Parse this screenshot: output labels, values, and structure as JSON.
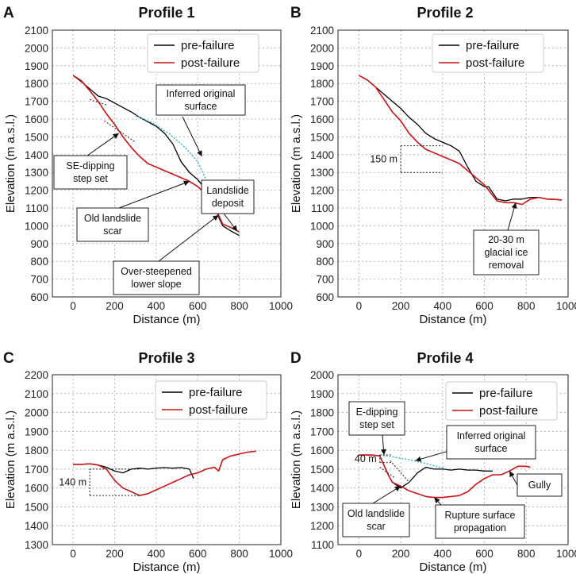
{
  "colors": {
    "pre": "#000000",
    "post": "#cc1414",
    "inferred": "#3fb8c8",
    "grid": "#b5b5b5"
  },
  "chart_data": [
    {
      "panel_letter": "A",
      "type": "line",
      "title": "Profile 1",
      "xlabel": "Distance (m)",
      "ylabel": "Elevation (m a.s.l.)",
      "xlim": [
        -100,
        1000
      ],
      "ylim": [
        600,
        2100
      ],
      "xticks": [
        0,
        200,
        400,
        600,
        800,
        1000
      ],
      "yticks": [
        600,
        700,
        800,
        900,
        1000,
        1100,
        1200,
        1300,
        1400,
        1500,
        1600,
        1700,
        1800,
        1900,
        2000,
        2100
      ],
      "legend": {
        "position": "top-right",
        "pre_label": "pre-failure",
        "post_label": "post-failure"
      },
      "series": [
        {
          "name": "pre-failure",
          "x": [
            0,
            40,
            80,
            120,
            160,
            200,
            240,
            280,
            320,
            360,
            400,
            440,
            480,
            520,
            560,
            600,
            640,
            680,
            700,
            720,
            760,
            800
          ],
          "y": [
            1845,
            1810,
            1770,
            1730,
            1715,
            1690,
            1665,
            1640,
            1610,
            1585,
            1560,
            1520,
            1460,
            1360,
            1300,
            1260,
            1200,
            1120,
            1050,
            1000,
            970,
            945
          ]
        },
        {
          "name": "post-failure",
          "x": [
            0,
            40,
            80,
            120,
            160,
            200,
            240,
            280,
            320,
            360,
            400,
            440,
            480,
            520,
            560,
            600,
            640,
            680,
            700,
            720,
            760,
            800
          ],
          "y": [
            1845,
            1815,
            1760,
            1700,
            1630,
            1570,
            1500,
            1440,
            1390,
            1350,
            1330,
            1310,
            1290,
            1270,
            1250,
            1220,
            1180,
            1120,
            1060,
            1010,
            990,
            965
          ]
        },
        {
          "name": "inferred",
          "style": "dotted",
          "x": [
            300,
            380,
            460,
            540,
            600,
            640,
            660
          ],
          "y": [
            1620,
            1580,
            1520,
            1440,
            1360,
            1260,
            1150
          ]
        },
        {
          "name": "step-1",
          "style": "dotted",
          "x": [
            80,
            160
          ],
          "y": [
            1710,
            1680
          ]
        },
        {
          "name": "step-2",
          "style": "dotted",
          "x": [
            150,
            300
          ],
          "y": [
            1590,
            1470
          ]
        }
      ],
      "annotations": [
        {
          "lines": [
            "Inferred original",
            "surface"
          ],
          "arrow_to": [
            620,
            1390
          ]
        },
        {
          "lines": [
            "SE-dipping",
            "step set"
          ],
          "arrow_to": [
            220,
            1520
          ]
        },
        {
          "lines": [
            "Old landslide",
            "scar"
          ],
          "arrow_to": [
            560,
            1250
          ]
        },
        {
          "lines": [
            "Landslide",
            "deposit"
          ],
          "arrow_to": [
            790,
            970
          ]
        },
        {
          "lines": [
            "Over-steepened",
            "lower slope"
          ],
          "arrow_to": [
            700,
            1060
          ]
        }
      ]
    },
    {
      "panel_letter": "B",
      "type": "line",
      "title": "Profile 2",
      "xlabel": "Distance (m)",
      "ylabel": "Elevation (m a.s.l.)",
      "xlim": [
        -100,
        1000
      ],
      "ylim": [
        600,
        2100
      ],
      "xticks": [
        0,
        200,
        400,
        600,
        800,
        1000
      ],
      "yticks": [
        600,
        700,
        800,
        900,
        1000,
        1100,
        1200,
        1300,
        1400,
        1500,
        1600,
        1700,
        1800,
        1900,
        2000,
        2100
      ],
      "legend": {
        "position": "top-right",
        "pre_label": "pre-failure",
        "post_label": "post-failure"
      },
      "series": [
        {
          "name": "pre-failure",
          "x": [
            0,
            40,
            80,
            120,
            160,
            200,
            240,
            280,
            320,
            360,
            400,
            440,
            480,
            520,
            560,
            600,
            620,
            660,
            700,
            740,
            780,
            820,
            860,
            900,
            940,
            970
          ],
          "y": [
            1845,
            1820,
            1780,
            1740,
            1700,
            1660,
            1610,
            1570,
            1520,
            1490,
            1470,
            1450,
            1420,
            1330,
            1250,
            1220,
            1220,
            1150,
            1140,
            1150,
            1150,
            1160,
            1160,
            1150,
            1148,
            1145
          ]
        },
        {
          "name": "post-failure",
          "x": [
            0,
            40,
            80,
            120,
            160,
            200,
            240,
            280,
            320,
            360,
            400,
            440,
            480,
            520,
            560,
            600,
            620,
            660,
            700,
            740,
            780,
            820,
            860,
            900,
            940,
            970
          ],
          "y": [
            1845,
            1820,
            1780,
            1710,
            1640,
            1590,
            1520,
            1470,
            1430,
            1410,
            1390,
            1370,
            1350,
            1310,
            1270,
            1230,
            1200,
            1140,
            1130,
            1130,
            1120,
            1150,
            1160,
            1150,
            1148,
            1145
          ]
        }
      ],
      "bracket": {
        "label": "150 m",
        "x": [
          200,
          400
        ],
        "y": [
          1300,
          1450
        ]
      },
      "annotations": [
        {
          "lines": [
            "20-30 m",
            "glacial ice",
            "removal"
          ],
          "arrow_to": [
            750,
            1130
          ]
        }
      ]
    },
    {
      "panel_letter": "C",
      "type": "line",
      "title": "Profile 3",
      "xlabel": "Distance (m)",
      "ylabel": "Elevation (m a.s.l.)",
      "xlim": [
        -100,
        1000
      ],
      "ylim": [
        1300,
        2200
      ],
      "xticks": [
        0,
        200,
        400,
        600,
        800,
        1000
      ],
      "yticks": [
        1300,
        1400,
        1500,
        1600,
        1700,
        1800,
        1900,
        2000,
        2100,
        2200
      ],
      "legend": {
        "position": "top-right",
        "pre_label": "pre-failure",
        "post_label": "post-failure"
      },
      "series": [
        {
          "name": "pre-failure",
          "x": [
            0,
            40,
            80,
            120,
            160,
            200,
            240,
            280,
            320,
            360,
            400,
            440,
            480,
            520,
            560,
            580
          ],
          "y": [
            1725,
            1725,
            1728,
            1722,
            1710,
            1690,
            1680,
            1700,
            1705,
            1700,
            1705,
            1708,
            1705,
            1708,
            1700,
            1650
          ]
        },
        {
          "name": "post-failure",
          "x": [
            0,
            40,
            80,
            120,
            160,
            200,
            240,
            280,
            320,
            360,
            400,
            440,
            480,
            520,
            560,
            600,
            640,
            680,
            700,
            720,
            760,
            800,
            840,
            880
          ],
          "y": [
            1725,
            1725,
            1728,
            1722,
            1700,
            1640,
            1600,
            1580,
            1560,
            1570,
            1590,
            1610,
            1630,
            1650,
            1670,
            1680,
            1700,
            1710,
            1690,
            1750,
            1770,
            1780,
            1790,
            1795
          ]
        }
      ],
      "bracket": {
        "label": "140 m",
        "x": [
          80,
          320
        ],
        "y": [
          1560,
          1700
        ]
      }
    },
    {
      "panel_letter": "D",
      "type": "line",
      "title": "Profile 4",
      "xlabel": "Distance (m)",
      "ylabel": "Elevation (m a.s.l.)",
      "xlim": [
        -100,
        1000
      ],
      "ylim": [
        1100,
        2000
      ],
      "xticks": [
        0,
        200,
        400,
        600,
        800,
        1000
      ],
      "yticks": [
        1100,
        1200,
        1300,
        1400,
        1500,
        1600,
        1700,
        1800,
        1900,
        2000
      ],
      "legend": {
        "position": "top-right",
        "pre_label": "pre-failure",
        "post_label": "post-failure"
      },
      "series": [
        {
          "name": "pre-failure",
          "x": [
            0,
            60,
            100,
            120,
            140,
            160,
            200,
            240,
            280,
            320,
            360,
            400,
            440,
            480,
            520,
            560,
            600,
            640
          ],
          "y": [
            1575,
            1575,
            1570,
            1520,
            1470,
            1430,
            1400,
            1430,
            1480,
            1510,
            1500,
            1500,
            1495,
            1500,
            1495,
            1495,
            1490,
            1490
          ]
        },
        {
          "name": "post-failure",
          "x": [
            0,
            60,
            100,
            120,
            140,
            160,
            200,
            240,
            280,
            320,
            360,
            400,
            440,
            480,
            520,
            560,
            600,
            640,
            680,
            720,
            760,
            800,
            820
          ],
          "y": [
            1575,
            1575,
            1570,
            1520,
            1470,
            1430,
            1410,
            1385,
            1370,
            1355,
            1350,
            1350,
            1355,
            1360,
            1380,
            1420,
            1450,
            1470,
            1470,
            1490,
            1515,
            1515,
            1510
          ]
        },
        {
          "name": "inferred",
          "style": "dotted",
          "x": [
            100,
            160,
            240,
            320,
            420
          ],
          "y": [
            1575,
            1565,
            1550,
            1530,
            1500
          ]
        },
        {
          "name": "step-1",
          "style": "dotted",
          "x": [
            100,
            170
          ],
          "y": [
            1510,
            1455
          ]
        },
        {
          "name": "step-2",
          "style": "dotted",
          "x": [
            150,
            240
          ],
          "y": [
            1545,
            1430
          ]
        }
      ],
      "bracket": {
        "label": "40 m",
        "x": [
          100,
          160
        ],
        "y": [
          1535,
          1575
        ]
      },
      "annotations": [
        {
          "lines": [
            "E-dipping",
            "step set"
          ],
          "arrow_to": [
            120,
            1575
          ]
        },
        {
          "lines": [
            "Inferred original",
            "surface"
          ],
          "arrow_to": [
            270,
            1545
          ]
        },
        {
          "lines": [
            "Old landslide",
            "scar"
          ],
          "arrow_to": [
            200,
            1410
          ]
        },
        {
          "lines": [
            "Rupture surface",
            "propagation"
          ],
          "arrow_to": [
            360,
            1350
          ]
        },
        {
          "lines": [
            "Gully"
          ],
          "arrow_to": [
            720,
            1490
          ]
        }
      ]
    }
  ]
}
